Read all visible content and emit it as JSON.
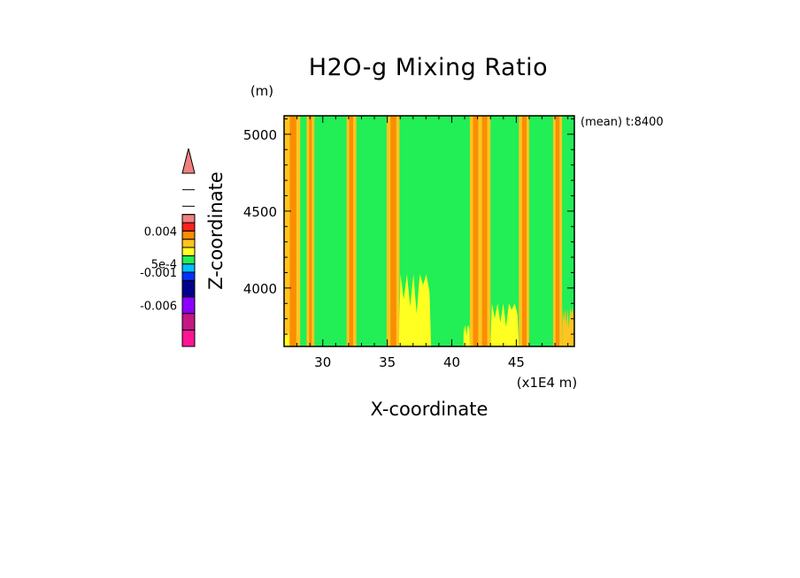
{
  "chart_data": {
    "type": "heatmap",
    "title": "H2O-g Mixing Ratio",
    "xlabel": "X-coordinate",
    "ylabel": "Z-coordinate",
    "x_unit": "(x1E4 m)",
    "y_unit": "(m)",
    "annotation": "(mean) t:8400",
    "xlim": [
      27,
      49.5
    ],
    "ylim": [
      3620,
      5120
    ],
    "x_ticks": [
      {
        "value": 30,
        "label": "30"
      },
      {
        "value": 35,
        "label": "35"
      },
      {
        "value": 40,
        "label": "40"
      },
      {
        "value": 45,
        "label": "45"
      }
    ],
    "y_ticks": [
      {
        "value": 4000,
        "label": "4000"
      },
      {
        "value": 4500,
        "label": "4500"
      },
      {
        "value": 5000,
        "label": "5000"
      }
    ],
    "x_minor_step": 1,
    "y_minor_step": 100,
    "background_color": "#22ee55",
    "bands": [
      {
        "x0": 27.0,
        "x1": 27.45,
        "color": "#ffc41f"
      },
      {
        "x0": 27.45,
        "x1": 27.95,
        "color": "#ff8c00"
      },
      {
        "x0": 27.95,
        "x1": 28.25,
        "color": "#ffc41f"
      },
      {
        "x0": 28.75,
        "x1": 28.95,
        "color": "#ffc41f"
      },
      {
        "x0": 28.95,
        "x1": 29.15,
        "color": "#ff8c00"
      },
      {
        "x0": 29.15,
        "x1": 29.35,
        "color": "#ffc41f"
      },
      {
        "x0": 31.85,
        "x1": 32.05,
        "color": "#ffc41f"
      },
      {
        "x0": 32.05,
        "x1": 32.35,
        "color": "#ff8c00"
      },
      {
        "x0": 32.35,
        "x1": 32.6,
        "color": "#ffc41f"
      },
      {
        "x0": 34.95,
        "x1": 35.25,
        "color": "#ffc41f"
      },
      {
        "x0": 35.25,
        "x1": 35.7,
        "color": "#ff8c00"
      },
      {
        "x0": 35.7,
        "x1": 35.95,
        "color": "#ffc41f"
      },
      {
        "x0": 41.4,
        "x1": 41.65,
        "color": "#ffc41f"
      },
      {
        "x0": 41.65,
        "x1": 42.05,
        "color": "#ff8c00"
      },
      {
        "x0": 42.05,
        "x1": 42.35,
        "color": "#ffc41f"
      },
      {
        "x0": 42.35,
        "x1": 42.75,
        "color": "#ff8c00"
      },
      {
        "x0": 42.75,
        "x1": 43.0,
        "color": "#ffc41f"
      },
      {
        "x0": 45.2,
        "x1": 45.45,
        "color": "#ffc41f"
      },
      {
        "x0": 45.45,
        "x1": 45.8,
        "color": "#ff8c00"
      },
      {
        "x0": 45.8,
        "x1": 46.0,
        "color": "#ffc41f"
      },
      {
        "x0": 47.85,
        "x1": 48.05,
        "color": "#ffc41f"
      },
      {
        "x0": 48.05,
        "x1": 48.35,
        "color": "#ff8c00"
      },
      {
        "x0": 48.35,
        "x1": 48.55,
        "color": "#ffc41f"
      }
    ],
    "low_patches": [
      {
        "x0": 35.9,
        "x1": 38.4,
        "ztop": 4090,
        "color": "#ffff22"
      },
      {
        "x0": 40.9,
        "x1": 41.4,
        "ztop": 3760,
        "color": "#ffff22"
      },
      {
        "x0": 43.0,
        "x1": 45.2,
        "ztop": 3900,
        "color": "#ffff22"
      },
      {
        "x0": 48.55,
        "x1": 49.5,
        "ztop": 3870,
        "color": "#ffc41f"
      },
      {
        "x0": 27.0,
        "x1": 27.4,
        "ztop": 3720,
        "color": "#ffff22"
      }
    ],
    "colorbar": {
      "colors": [
        "#ff1493",
        "#c71585",
        "#8b00ff",
        "#00008b",
        "#0033ff",
        "#00bfff",
        "#22ee55",
        "#ffff22",
        "#ffc41f",
        "#ff8c00",
        "#ff2020",
        "#f08080"
      ],
      "segments": [
        0,
        2,
        4,
        6,
        8,
        9,
        10,
        11,
        12,
        13,
        14,
        15,
        16,
        17,
        19,
        21
      ],
      "tick_labels": [
        {
          "seg": 5,
          "label": "-0.006"
        },
        {
          "seg": 9,
          "label": "-0.001"
        },
        {
          "seg": 10,
          "label": "5e-4"
        },
        {
          "seg": 14,
          "label": "0.004"
        }
      ],
      "overflow_arrow": "top"
    }
  }
}
